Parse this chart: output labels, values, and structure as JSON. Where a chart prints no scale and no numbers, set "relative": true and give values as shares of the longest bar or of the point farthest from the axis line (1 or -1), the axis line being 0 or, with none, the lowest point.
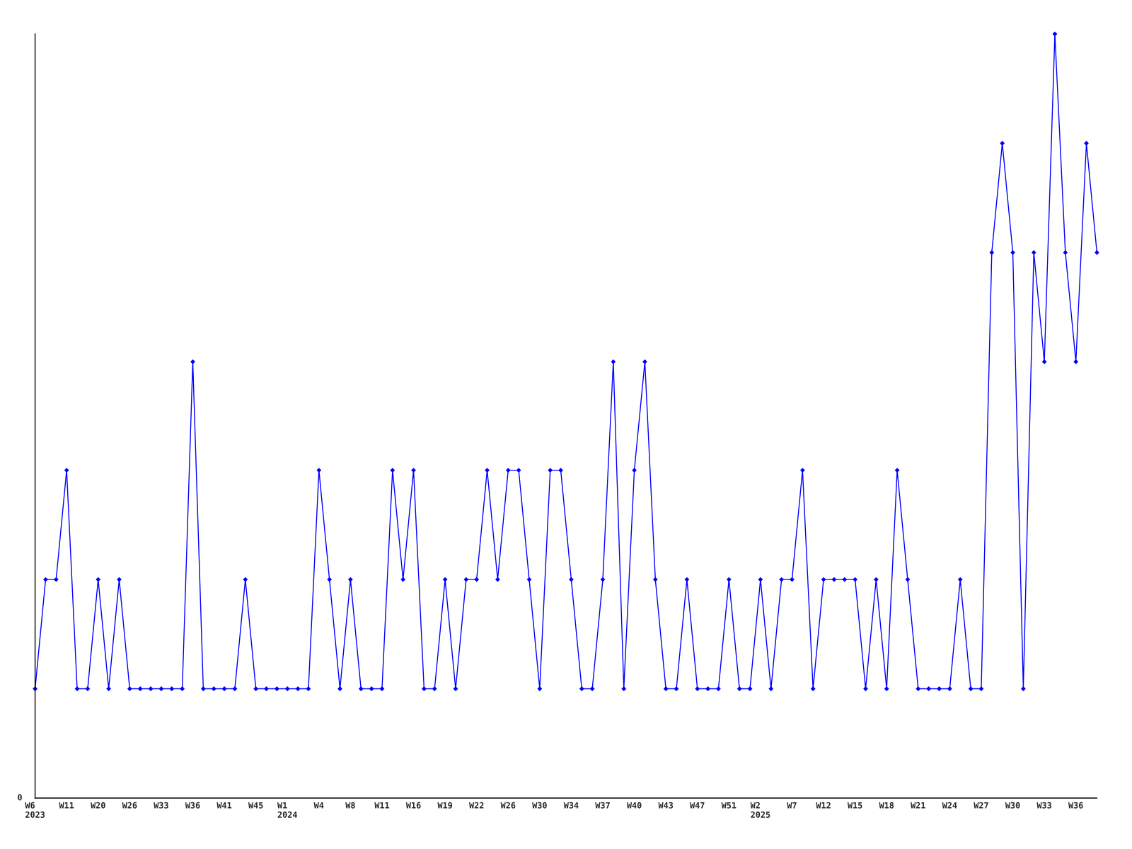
{
  "chart_data": {
    "type": "line",
    "relative": true,
    "annotations": [
      "0"
    ],
    "marker": "diamond",
    "line_style": "solid",
    "grid": false,
    "categories": [
      "W6\n2023",
      null,
      null,
      "W11",
      null,
      null,
      "W20",
      null,
      null,
      "W26",
      null,
      null,
      "W33",
      null,
      null,
      "W36",
      null,
      null,
      "W41",
      null,
      null,
      "W45",
      null,
      null,
      "W1\n2024",
      null,
      null,
      "W4",
      null,
      null,
      "W8",
      null,
      null,
      "W11",
      null,
      null,
      "W16",
      null,
      null,
      "W19",
      null,
      null,
      "W22",
      null,
      null,
      "W26",
      null,
      null,
      "W30",
      null,
      null,
      "W34",
      null,
      null,
      "W37",
      null,
      null,
      "W40",
      null,
      null,
      "W43",
      null,
      null,
      "W47",
      null,
      null,
      "W51",
      null,
      null,
      "W2\n2025",
      null,
      null,
      "W7",
      null,
      null,
      "W12",
      null,
      null,
      "W15",
      null,
      null,
      "W18",
      null,
      null,
      "W21",
      null,
      null,
      "W24",
      null,
      null,
      "W27",
      null,
      null,
      "W30",
      null,
      null,
      "W33",
      null,
      null,
      "W36",
      null,
      null
    ],
    "series": [
      {
        "color": "#0000ff",
        "values": [
          0.143,
          0.286,
          0.286,
          0.429,
          0.143,
          0.143,
          0.286,
          0.143,
          0.286,
          0.143,
          0.143,
          0.143,
          0.143,
          0.143,
          0.143,
          0.571,
          0.143,
          0.143,
          0.143,
          0.143,
          0.286,
          0.143,
          0.143,
          0.143,
          0.143,
          0.143,
          0.143,
          0.429,
          0.286,
          0.143,
          0.286,
          0.143,
          0.143,
          0.143,
          0.429,
          0.286,
          0.429,
          0.143,
          0.143,
          0.286,
          0.143,
          0.286,
          0.286,
          0.429,
          0.286,
          0.429,
          0.429,
          0.286,
          0.143,
          0.429,
          0.429,
          0.286,
          0.143,
          0.143,
          0.286,
          0.571,
          0.143,
          0.429,
          0.571,
          0.286,
          0.143,
          0.143,
          0.286,
          0.143,
          0.143,
          0.143,
          0.286,
          0.143,
          0.143,
          0.286,
          0.143,
          0.286,
          0.286,
          0.429,
          0.143,
          0.286,
          0.286,
          0.286,
          0.286,
          0.143,
          0.286,
          0.143,
          0.429,
          0.286,
          0.143,
          0.143,
          0.143,
          0.143,
          0.286,
          0.143,
          0.143,
          0.714,
          0.857,
          0.714,
          0.143,
          0.714,
          0.571,
          1,
          0.714,
          0.571,
          0.857,
          0.714
        ]
      }
    ]
  }
}
